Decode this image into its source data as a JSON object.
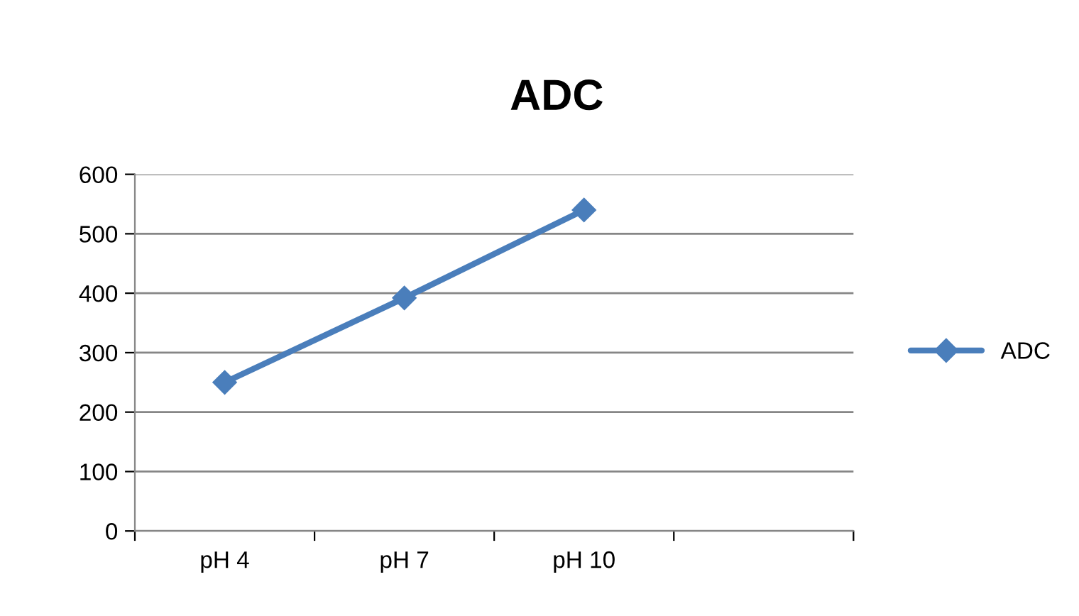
{
  "chart_data": {
    "type": "line",
    "title": "ADC",
    "categories": [
      "pH 4",
      "pH 7",
      "pH 10",
      null
    ],
    "series": [
      {
        "name": "ADC",
        "color": "#4a7ebb",
        "values": [
          250,
          392,
          540,
          null
        ]
      }
    ],
    "ylim": [
      0,
      600
    ],
    "yticks": [
      0,
      100,
      200,
      300,
      400,
      500,
      600
    ],
    "grid": "y",
    "legend": "right",
    "marker": "diamond",
    "line_style": "solid"
  }
}
